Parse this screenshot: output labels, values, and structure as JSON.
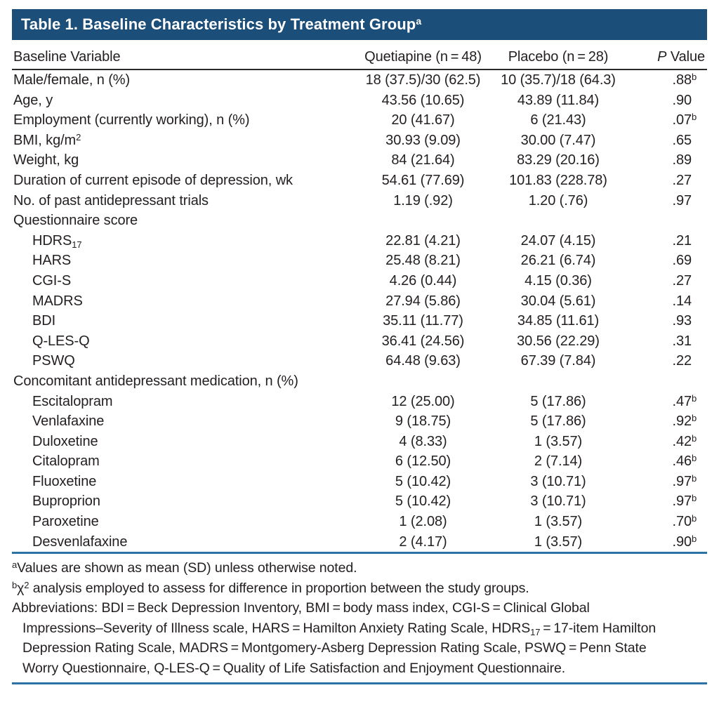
{
  "title": {
    "text": "Table 1. Baseline Characteristics by Treatment Group",
    "marker": "a"
  },
  "columns": {
    "variable": "Baseline Variable",
    "quetiapine": "Quetiapine (n = 48)",
    "placebo": "Placebo (n = 28)",
    "p_italic": "P",
    "p_rest": " Value"
  },
  "rows": [
    {
      "label": [
        {
          "t": "Male/female, n (%)"
        }
      ],
      "q": "18 (37.5)/30 (62.5)",
      "pl": "10 (35.7)/18 (64.3)",
      "p": ".88",
      "p_marker": "b"
    },
    {
      "label": [
        {
          "t": "Age, y"
        }
      ],
      "q": "43.56 (10.65)",
      "pl": "43.89 (11.84)",
      "p": ".90"
    },
    {
      "label": [
        {
          "t": "Employment (currently working), n (%)"
        }
      ],
      "q": "20 (41.67)",
      "pl": "6 (21.43)",
      "p": ".07",
      "p_marker": "b"
    },
    {
      "label": [
        {
          "t": "BMI, kg/m"
        },
        {
          "t": "2",
          "sup": true
        }
      ],
      "q": "30.93 (9.09)",
      "pl": "30.00 (7.47)",
      "p": ".65"
    },
    {
      "label": [
        {
          "t": "Weight, kg"
        }
      ],
      "q": "84 (21.64)",
      "pl": "83.29 (20.16)",
      "p": ".89"
    },
    {
      "label": [
        {
          "t": "Duration of current episode of depression, wk"
        }
      ],
      "q": "54.61 (77.69)",
      "pl": "101.83 (228.78)",
      "p": ".27"
    },
    {
      "label": [
        {
          "t": "No. of past antidepressant trials"
        }
      ],
      "q": "1.19 (.92)",
      "pl": "1.20 (.76)",
      "p": ".97"
    },
    {
      "label": [
        {
          "t": "Questionnaire score"
        }
      ],
      "section": true
    },
    {
      "label": [
        {
          "t": "HDRS"
        },
        {
          "t": "17",
          "sub": true
        }
      ],
      "indent": true,
      "q": "22.81 (4.21)",
      "pl": "24.07 (4.15)",
      "p": ".21"
    },
    {
      "label": [
        {
          "t": "HARS"
        }
      ],
      "indent": true,
      "q": "25.48 (8.21)",
      "pl": "26.21 (6.74)",
      "p": ".69"
    },
    {
      "label": [
        {
          "t": "CGI-S"
        }
      ],
      "indent": true,
      "q": "4.26 (0.44)",
      "pl": "4.15 (0.36)",
      "p": ".27"
    },
    {
      "label": [
        {
          "t": "MADRS"
        }
      ],
      "indent": true,
      "q": "27.94 (5.86)",
      "pl": "30.04 (5.61)",
      "p": ".14"
    },
    {
      "label": [
        {
          "t": "BDI"
        }
      ],
      "indent": true,
      "q": "35.11 (11.77)",
      "pl": "34.85 (11.61)",
      "p": ".93"
    },
    {
      "label": [
        {
          "t": "Q-LES-Q"
        }
      ],
      "indent": true,
      "q": "36.41 (24.56)",
      "pl": "30.56 (22.29)",
      "p": ".31"
    },
    {
      "label": [
        {
          "t": "PSWQ"
        }
      ],
      "indent": true,
      "q": "64.48 (9.63)",
      "pl": "67.39 (7.84)",
      "p": ".22"
    },
    {
      "label": [
        {
          "t": "Concomitant antidepressant medication, n (%)"
        }
      ],
      "section": true
    },
    {
      "label": [
        {
          "t": "Escitalopram"
        }
      ],
      "indent": true,
      "q": "12 (25.00)",
      "pl": "5 (17.86)",
      "p": ".47",
      "p_marker": "b"
    },
    {
      "label": [
        {
          "t": "Venlafaxine"
        }
      ],
      "indent": true,
      "q": "9 (18.75)",
      "pl": "5 (17.86)",
      "p": ".92",
      "p_marker": "b"
    },
    {
      "label": [
        {
          "t": "Duloxetine"
        }
      ],
      "indent": true,
      "q": "4 (8.33)",
      "pl": "1 (3.57)",
      "p": ".42",
      "p_marker": "b"
    },
    {
      "label": [
        {
          "t": "Citalopram"
        }
      ],
      "indent": true,
      "q": "6 (12.50)",
      "pl": "2 (7.14)",
      "p": ".46",
      "p_marker": "b"
    },
    {
      "label": [
        {
          "t": "Fluoxetine"
        }
      ],
      "indent": true,
      "q": "5 (10.42)",
      "pl": "3 (10.71)",
      "p": ".97",
      "p_marker": "b"
    },
    {
      "label": [
        {
          "t": "Buproprion"
        }
      ],
      "indent": true,
      "q": "5 (10.42)",
      "pl": "3 (10.71)",
      "p": ".97",
      "p_marker": "b"
    },
    {
      "label": [
        {
          "t": "Paroxetine"
        }
      ],
      "indent": true,
      "q": "1 (2.08)",
      "pl": "1 (3.57)",
      "p": ".70",
      "p_marker": "b"
    },
    {
      "label": [
        {
          "t": "Desvenlafaxine"
        }
      ],
      "indent": true,
      "q": "2 (4.17)",
      "pl": "1 (3.57)",
      "p": ".90",
      "p_marker": "b"
    }
  ],
  "footnotes": [
    {
      "name": "footnote-a",
      "parts": [
        {
          "t": "a",
          "sup": true
        },
        {
          "t": "Values are shown as mean (SD) unless otherwise noted."
        }
      ]
    },
    {
      "name": "footnote-b",
      "parts": [
        {
          "t": "b",
          "sup": true
        },
        {
          "t": "χ"
        },
        {
          "t": "2",
          "sup": true
        },
        {
          "t": " analysis employed to assess for difference in proportion between the study groups."
        }
      ]
    },
    {
      "name": "footnote-abbreviations",
      "hanging": true,
      "parts": [
        {
          "t": "Abbreviations: BDI = Beck Depression Inventory, BMI = body mass index, CGI-S = Clinical Global Impressions–Severity of Illness scale, HARS = Hamilton Anxiety Rating Scale, HDRS"
        },
        {
          "t": "17",
          "sub": true
        },
        {
          "t": " = 17-item Hamilton Depression Rating Scale, MADRS = Montgomery-Asberg Depression Rating Scale, PSWQ = Penn State Worry Questionnaire, Q-LES-Q = Quality of Life Satisfaction and Enjoyment Questionnaire."
        }
      ]
    }
  ],
  "colors": {
    "header_bg": "#1b4e78",
    "rule_blue": "#2d72a4",
    "rule_dark": "#2a2a2a",
    "text": "#231f20"
  }
}
